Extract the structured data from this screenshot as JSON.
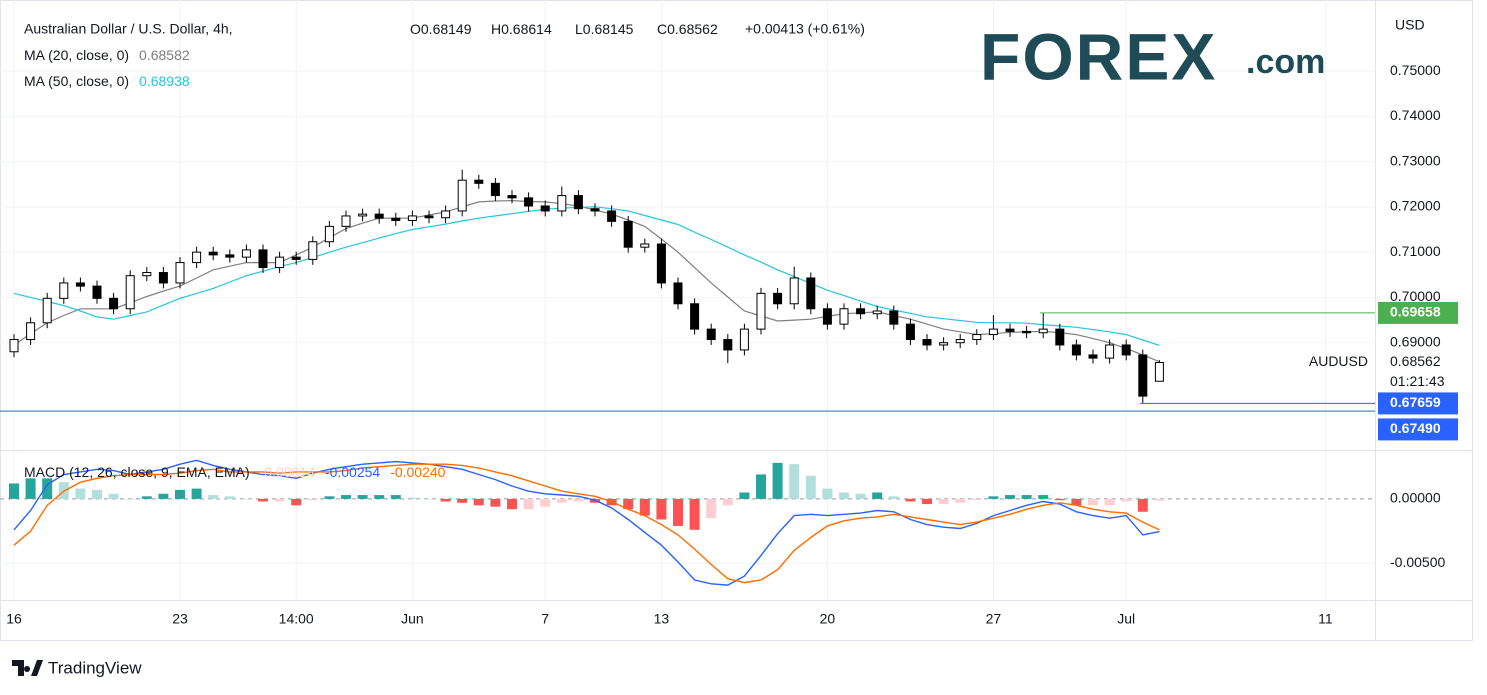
{
  "header": {
    "title": "Australian Dollar / U.S. Dollar, 4h,",
    "ohlc": [
      {
        "label": "O",
        "value": 0.68149
      },
      {
        "label": "H",
        "value": 0.68614
      },
      {
        "label": "L",
        "value": 0.68145
      },
      {
        "label": "C",
        "value": 0.68562
      }
    ],
    "change": "+0.00413 (+0.61%)"
  },
  "logo": {
    "brand": "FOREX",
    "suffix": ".com"
  },
  "footer": {
    "brand": "TradingView"
  },
  "chart_data": [
    {
      "type": "candlestick",
      "y_axis_label": "USD",
      "categories": [
        "16",
        null,
        null,
        null,
        null,
        null,
        null,
        null,
        null,
        null,
        "23",
        null,
        null,
        null,
        null,
        null,
        null,
        "14:00",
        null,
        null,
        null,
        null,
        null,
        null,
        "Jun",
        null,
        null,
        null,
        null,
        null,
        null,
        null,
        "7",
        null,
        null,
        null,
        null,
        null,
        null,
        "13",
        null,
        null,
        null,
        null,
        null,
        null,
        null,
        null,
        null,
        "20",
        null,
        null,
        null,
        null,
        null,
        null,
        null,
        null,
        null,
        "27",
        null,
        null,
        null,
        null,
        null,
        null,
        null,
        "Jul",
        null,
        null,
        null,
        null,
        null,
        null,
        null,
        null,
        null,
        null,
        null,
        "11"
      ],
      "open": [
        0.688,
        0.6907,
        0.6944,
        0.6998,
        0.7032,
        0.7025,
        0.6998,
        0.6975,
        0.7048,
        0.7055,
        0.7032,
        0.7077,
        0.71,
        0.7094,
        0.7089,
        0.7105,
        0.7066,
        0.7089,
        0.7084,
        0.7123,
        0.7157,
        0.718,
        0.7184,
        0.7175,
        0.717,
        0.718,
        0.7176,
        0.7191,
        0.7259,
        0.7252,
        0.7225,
        0.722,
        0.7202,
        0.7191,
        0.7225,
        0.7196,
        0.7191,
        0.7168,
        0.7111,
        0.7118,
        0.7032,
        0.6986,
        0.693,
        0.6907,
        0.6884,
        0.693,
        0.7009,
        0.6986,
        0.7043,
        0.6975,
        0.6941,
        0.6975,
        0.6964,
        0.697,
        0.6941,
        0.6907,
        0.6895,
        0.69,
        0.6907,
        0.6918,
        0.693,
        0.6925,
        0.6922,
        0.693,
        0.6895,
        0.6873,
        0.6866,
        0.6895,
        0.6873,
        0.68149,
        null,
        null,
        null,
        null,
        null,
        null,
        null,
        null,
        null,
        null
      ],
      "high": [
        0.6919,
        0.6956,
        0.701,
        0.7044,
        0.7044,
        0.7037,
        0.701,
        0.706,
        0.7067,
        0.7067,
        0.7089,
        0.7112,
        0.7112,
        0.7106,
        0.7117,
        0.7117,
        0.7101,
        0.7101,
        0.7135,
        0.7169,
        0.7192,
        0.7196,
        0.7196,
        0.7187,
        0.7192,
        0.7192,
        0.7203,
        0.7282,
        0.7271,
        0.7264,
        0.7237,
        0.7232,
        0.7214,
        0.7245,
        0.7237,
        0.7208,
        0.7203,
        0.718,
        0.713,
        0.713,
        0.7044,
        0.6998,
        0.6942,
        0.6919,
        0.6942,
        0.7021,
        0.7021,
        0.7068,
        0.7055,
        0.6987,
        0.6987,
        0.6987,
        0.6982,
        0.6982,
        0.6953,
        0.6919,
        0.6912,
        0.6919,
        0.693,
        0.6961,
        0.6942,
        0.6937,
        0.6966,
        0.6942,
        0.6907,
        0.6885,
        0.6907,
        0.6907,
        0.6885,
        0.68614,
        null,
        null,
        null,
        null,
        null,
        null,
        null,
        null,
        null,
        null
      ],
      "low": [
        0.6868,
        0.6895,
        0.6932,
        0.6986,
        0.7013,
        0.6986,
        0.6963,
        0.6963,
        0.7036,
        0.702,
        0.702,
        0.7065,
        0.7082,
        0.7077,
        0.7077,
        0.7054,
        0.7054,
        0.7072,
        0.7072,
        0.7111,
        0.7145,
        0.7168,
        0.7163,
        0.7158,
        0.7158,
        0.7164,
        0.7164,
        0.7179,
        0.724,
        0.7213,
        0.7208,
        0.719,
        0.7179,
        0.7179,
        0.7184,
        0.7179,
        0.7156,
        0.7099,
        0.7099,
        0.702,
        0.6974,
        0.6918,
        0.6895,
        0.6855,
        0.6872,
        0.6918,
        0.6974,
        0.6974,
        0.6963,
        0.6929,
        0.6929,
        0.6952,
        0.6952,
        0.6929,
        0.6895,
        0.6883,
        0.6883,
        0.6888,
        0.6895,
        0.6906,
        0.6913,
        0.691,
        0.691,
        0.6883,
        0.6861,
        0.6854,
        0.6854,
        0.6861,
        0.6766,
        0.68145,
        null,
        null,
        null,
        null,
        null,
        null,
        null,
        null,
        null,
        null
      ],
      "close": [
        0.6907,
        0.6944,
        0.6998,
        0.7032,
        0.7025,
        0.6998,
        0.6975,
        0.7048,
        0.7055,
        0.7032,
        0.7077,
        0.71,
        0.7094,
        0.7089,
        0.7105,
        0.7066,
        0.7089,
        0.7084,
        0.7123,
        0.7157,
        0.718,
        0.7184,
        0.7175,
        0.717,
        0.718,
        0.7176,
        0.7191,
        0.7259,
        0.7252,
        0.7225,
        0.722,
        0.7202,
        0.7191,
        0.7225,
        0.7196,
        0.7191,
        0.7168,
        0.7111,
        0.7118,
        0.7032,
        0.6986,
        0.693,
        0.6907,
        0.6884,
        0.693,
        0.7009,
        0.6986,
        0.7043,
        0.6975,
        0.6941,
        0.6975,
        0.6964,
        0.697,
        0.6941,
        0.6907,
        0.6895,
        0.69,
        0.6907,
        0.6918,
        0.693,
        0.6925,
        0.6922,
        0.693,
        0.6895,
        0.6873,
        0.6866,
        0.6895,
        0.6873,
        0.6782,
        0.68562,
        null,
        null,
        null,
        null,
        null,
        null,
        null,
        null,
        null,
        null
      ],
      "up_color": "#ffffff",
      "down_color": "#000000",
      "border_color": "#000000",
      "series": [
        {
          "name": "MA (20, close, 0)",
          "legend_value": 0.68582,
          "color": "#7f7f7f",
          "values": [
            0.6895,
            0.692,
            0.6944,
            0.696,
            0.6975,
            0.6975,
            0.6975,
            0.6988,
            0.7002,
            0.7014,
            0.7025,
            0.7043,
            0.7061,
            0.7069,
            0.7077,
            0.7077,
            0.7077,
            0.7094,
            0.7111,
            0.7132,
            0.7152,
            0.7164,
            0.7175,
            0.7175,
            0.7175,
            0.7182,
            0.7189,
            0.72,
            0.7211,
            0.7213,
            0.7214,
            0.7212,
            0.7211,
            0.7207,
            0.7202,
            0.7193,
            0.7184,
            0.7171,
            0.7157,
            0.7129,
            0.71,
            0.7066,
            0.7032,
            0.7001,
            0.697,
            0.6959,
            0.6948,
            0.695,
            0.6952,
            0.6958,
            0.6964,
            0.6966,
            0.6968,
            0.696,
            0.6952,
            0.6941,
            0.693,
            0.6924,
            0.6918,
            0.692,
            0.6923,
            0.6924,
            0.6925,
            0.6922,
            0.6918,
            0.6909,
            0.69,
            0.6887,
            0.6873,
            0.6858,
            null,
            null,
            null,
            null,
            null,
            null,
            null,
            null,
            null,
            null
          ]
        },
        {
          "name": "MA (50, close, 0)",
          "legend_value": 0.68938,
          "color": "#26c6da",
          "values": [
            0.7009,
            0.7,
            0.6991,
            0.6982,
            0.697,
            0.6957,
            0.6952,
            0.696,
            0.6968,
            0.6983,
            0.6998,
            0.7009,
            0.702,
            0.7034,
            0.7048,
            0.7058,
            0.7068,
            0.7077,
            0.7088,
            0.71,
            0.7111,
            0.7121,
            0.7131,
            0.7141,
            0.715,
            0.7156,
            0.7162,
            0.7169,
            0.7175,
            0.718,
            0.7185,
            0.719,
            0.7195,
            0.7197,
            0.7199,
            0.72,
            0.7196,
            0.7191,
            0.7181,
            0.7171,
            0.7161,
            0.7144,
            0.7128,
            0.7111,
            0.7094,
            0.7078,
            0.7061,
            0.7046,
            0.7031,
            0.7016,
            0.7004,
            0.6992,
            0.698,
            0.6972,
            0.6965,
            0.6957,
            0.6953,
            0.6949,
            0.6945,
            0.6944,
            0.6944,
            0.6943,
            0.694,
            0.6937,
            0.6934,
            0.6929,
            0.6924,
            0.6918,
            0.6906,
            0.6894,
            null,
            null,
            null,
            null,
            null,
            null,
            null,
            null,
            null,
            null
          ]
        }
      ],
      "ylim": [
        0.6663,
        0.7657
      ],
      "yticks": [
        {
          "value": 0.75,
          "label": "0.75000"
        },
        {
          "value": 0.74,
          "label": "0.74000"
        },
        {
          "value": 0.73,
          "label": "0.73000"
        },
        {
          "value": 0.72,
          "label": "0.72000"
        },
        {
          "value": 0.71,
          "label": "0.71000"
        },
        {
          "value": 0.7,
          "label": "0.70000"
        },
        {
          "value": 0.69,
          "label": "0.69000"
        }
      ],
      "grid": true,
      "price_lines": [
        {
          "value": 0.69658,
          "color": "#4caf50"
        },
        {
          "value": 0.67659,
          "color": "#2962ff"
        },
        {
          "value": 0.6749,
          "label": "0.67490",
          "color": "#2962ff"
        }
      ],
      "last_price": {
        "symbol": "AUDUSD",
        "value": 0.68562,
        "countdown": "01:21:43"
      }
    },
    {
      "type": "macd",
      "title": "MACD (12, 26, close, 9, EMA, EMA)",
      "histogram": {
        "legend_value": -0.00014,
        "colors": {
          "grow_above": "#26a69a",
          "fall_above": "#b2dfdb",
          "grow_below": "#ffcdd2",
          "fall_below": "#ff5252"
        },
        "values": [
          0.0012,
          0.0016,
          0.0016,
          0.0013,
          0.0008,
          0.0007,
          0.0004,
          0,
          0.0002,
          0.0004,
          0.0007,
          0.0008,
          0.0003,
          0.0002,
          0,
          -0.0002,
          -0.0002,
          -0.0005,
          -0.0001,
          0.0002,
          0.0003,
          0.0003,
          0.0003,
          0.0003,
          0.0001,
          0,
          -0.0002,
          -0.0003,
          -0.0005,
          -0.0006,
          -0.0008,
          -0.0008,
          -0.0006,
          -0.0003,
          -0.0002,
          -0.0003,
          -0.0005,
          -0.0008,
          -0.0013,
          -0.0016,
          -0.0021,
          -0.0024,
          -0.0015,
          -0.0005,
          0.0005,
          0.0019,
          0.0028,
          0.0027,
          0.0018,
          0.0008,
          0.0005,
          0.0004,
          0.0005,
          0.0002,
          -0.0002,
          -0.0004,
          -0.0004,
          -0.0003,
          -0.0001,
          0.0002,
          0.0003,
          0.0003,
          0.0003,
          -0.0001,
          -0.0005,
          -0.0005,
          -0.0005,
          -0.0002,
          -0.001,
          -0.00014,
          null,
          null,
          null,
          null,
          null,
          null,
          null,
          null,
          null,
          null
        ]
      },
      "macd": {
        "legend_value": -0.00254,
        "color": "#2962ff",
        "values": [
          -0.0024,
          -0.0009,
          0.0011,
          0.0019,
          0.0021,
          0.0023,
          0.0022,
          0.0019,
          0.0021,
          0.0023,
          0.0027,
          0.003,
          0.0026,
          0.0023,
          0.0021,
          0.0019,
          0.0018,
          0.0016,
          0.002,
          0.0023,
          0.0025,
          0.0027,
          0.0028,
          0.0029,
          0.0028,
          0.0027,
          0.0025,
          0.0023,
          0.0019,
          0.0015,
          0.001,
          0.0006,
          0.0004,
          0.0003,
          0.0002,
          -0.0001,
          -0.0007,
          -0.0016,
          -0.0026,
          -0.0036,
          -0.0049,
          -0.0063,
          -0.0066,
          -0.0067,
          -0.006,
          -0.0044,
          -0.0027,
          -0.0013,
          -0.0012,
          -0.0013,
          -0.0012,
          -0.0011,
          -0.0009,
          -0.001,
          -0.0016,
          -0.002,
          -0.0022,
          -0.0023,
          -0.0019,
          -0.0013,
          -0.0009,
          -0.0005,
          -0.0002,
          -0.0004,
          -0.001,
          -0.0013,
          -0.0015,
          -0.0013,
          -0.0028,
          -0.00254,
          null,
          null,
          null,
          null,
          null,
          null,
          null,
          null,
          null,
          null
        ]
      },
      "signal": {
        "legend_value": {
          "value": -0.0024,
          "label": "-0.00240"
        },
        "color": "#ff6d00",
        "values": [
          -0.0036,
          -0.0025,
          -0.0005,
          0.0006,
          0.0013,
          0.0016,
          0.0018,
          0.0019,
          0.0019,
          0.0019,
          0.002,
          0.0022,
          0.0023,
          0.0021,
          0.0021,
          0.0021,
          0.002,
          0.0021,
          0.0021,
          0.0021,
          0.0022,
          0.0024,
          0.0025,
          0.0026,
          0.0027,
          0.0027,
          0.0027,
          0.0026,
          0.0024,
          0.0021,
          0.0018,
          0.0014,
          0.001,
          0.0006,
          0.0004,
          0.0002,
          -0.0002,
          -0.0008,
          -0.0013,
          -0.002,
          -0.0028,
          -0.0039,
          -0.0051,
          -0.0062,
          -0.0065,
          -0.0063,
          -0.0055,
          -0.004,
          -0.003,
          -0.0021,
          -0.0017,
          -0.0015,
          -0.0014,
          -0.0012,
          -0.0014,
          -0.0016,
          -0.0018,
          -0.002,
          -0.0018,
          -0.0015,
          -0.0012,
          -0.0008,
          -0.0005,
          -0.0003,
          -0.0005,
          -0.0008,
          -0.001,
          -0.0011,
          -0.0018,
          -0.0024,
          null,
          null,
          null,
          null,
          null,
          null,
          null,
          null,
          null,
          null
        ]
      },
      "ylim": [
        -0.0077,
        0.0038
      ],
      "yticks": [
        {
          "value": 0,
          "label": "0.00000"
        },
        {
          "value": -0.005,
          "label": "-0.00500"
        }
      ],
      "grid": true
    }
  ]
}
